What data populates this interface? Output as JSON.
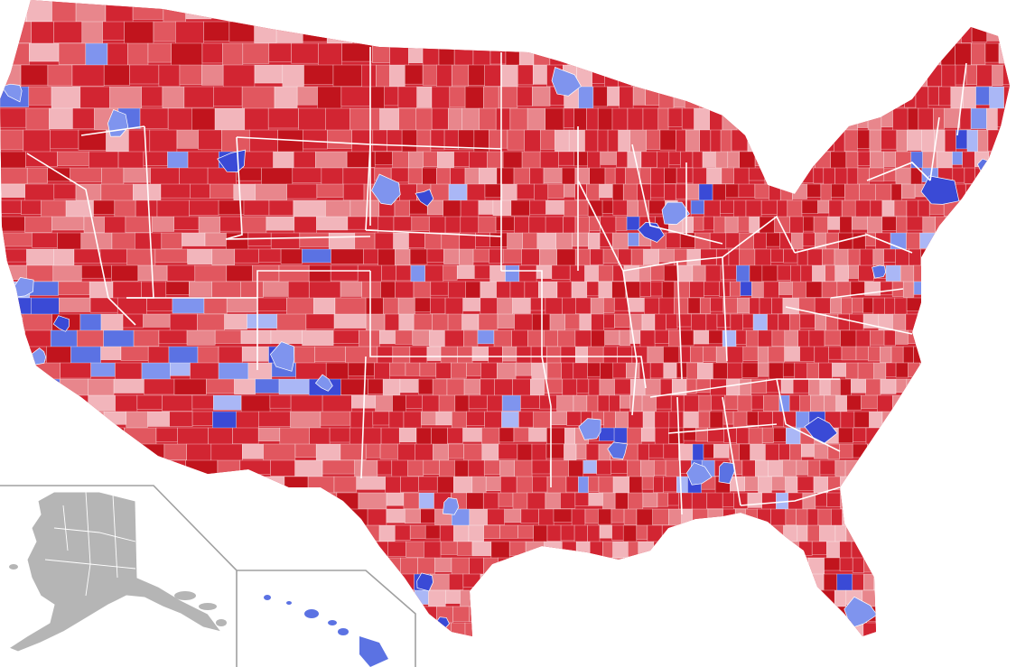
{
  "map": {
    "palette": {
      "dark_red": "#c1141d",
      "red": "#d22532",
      "medium_red": "#e1575f",
      "light_red": "#e8868c",
      "pale_red": "#f2b5bb",
      "pale_blue": "#aab7f6",
      "light_blue": "#7f94ee",
      "blue": "#5b72e3",
      "dark_blue": "#3a4ad6",
      "alaska_gray": "#b5b5b5",
      "hawaii_blue": "#5b72e3",
      "boundary": "#ffffff",
      "inset_border": "#a0a0a0"
    },
    "blue_share_estimate": 0.14
  }
}
